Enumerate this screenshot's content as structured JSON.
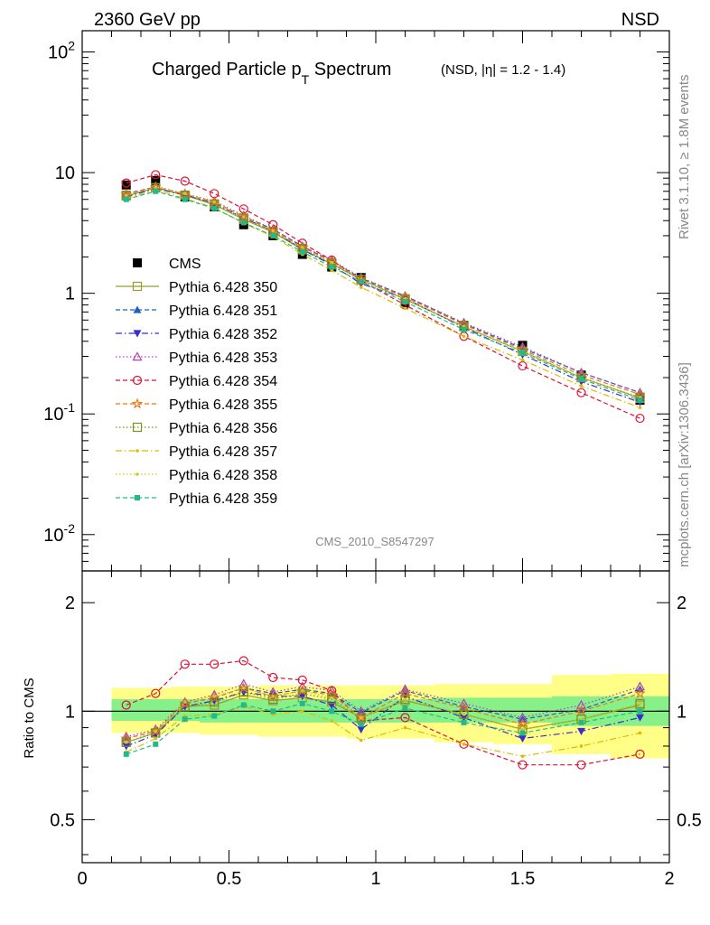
{
  "header": {
    "left": "2360 GeV pp",
    "right": "NSD"
  },
  "title": {
    "main": "Charged Particle p",
    "sub": "T",
    "main2": " Spectrum",
    "extra": "(NSD, |η| = 1.2 - 1.4)"
  },
  "side_labels": {
    "rivet": "Rivet 3.1.10, ≥ 1.8M events",
    "mcplots": "mcplots.cern.ch [arXiv:1306.3436]"
  },
  "analysis_id": "CMS_2010_S8547297",
  "ratio_axis_label": "Ratio to CMS",
  "colors": {
    "data": "#000000",
    "band_outer": "#ffff88",
    "band_inner": "#88f088"
  },
  "chart_data": [
    {
      "type": "scatter",
      "yscale": "log",
      "ylim": [
        0.005,
        150
      ],
      "xlim": [
        0,
        2
      ],
      "y_tick_labels": [
        "10⁻²",
        "10⁻¹",
        "1",
        "10",
        "10²"
      ],
      "x": [
        0.15,
        0.25,
        0.35,
        0.45,
        0.55,
        0.65,
        0.75,
        0.85,
        0.95,
        1.1,
        1.3,
        1.5,
        1.7,
        1.9
      ],
      "legend_position": "left-middle",
      "series": [
        {
          "name": "CMS",
          "color": "#000000",
          "style": "data",
          "marker": "square-filled",
          "values": [
            7.9,
            8.6,
            6.3,
            5.2,
            3.7,
            3.0,
            2.1,
            1.65,
            1.35,
            0.83,
            0.54,
            0.37,
            0.21,
            0.13
          ]
        },
        {
          "name": "Pythia 6.428 350",
          "color": "#9a9a32",
          "style": "solid",
          "marker": "square-open",
          "values": [
            6.4,
            7.5,
            6.5,
            5.4,
            4.1,
            3.2,
            2.3,
            1.75,
            1.3,
            0.89,
            0.53,
            0.33,
            0.2,
            0.135
          ]
        },
        {
          "name": "Pythia 6.428 351",
          "color": "#1f5fbf",
          "style": "dashed",
          "marker": "triangle-up-filled",
          "values": [
            6.7,
            7.6,
            6.6,
            5.7,
            4.3,
            3.4,
            2.45,
            1.85,
            1.33,
            0.95,
            0.56,
            0.35,
            0.22,
            0.15
          ]
        },
        {
          "name": "Pythia 6.428 352",
          "color": "#3a2ccc",
          "style": "dashdot",
          "marker": "triangle-down-filled",
          "values": [
            6.3,
            7.4,
            6.5,
            5.6,
            4.2,
            3.3,
            2.3,
            1.72,
            1.2,
            0.91,
            0.52,
            0.31,
            0.185,
            0.125
          ]
        },
        {
          "name": "Pythia 6.428 353",
          "color": "#b040b8",
          "style": "dotted",
          "marker": "triangle-up-open",
          "values": [
            6.6,
            7.7,
            6.7,
            5.8,
            4.4,
            3.4,
            2.45,
            1.88,
            1.35,
            0.95,
            0.57,
            0.36,
            0.22,
            0.15
          ]
        },
        {
          "name": "Pythia 6.428 354",
          "color": "#dd1133",
          "style": "dashed",
          "marker": "circle-open",
          "values": [
            8.2,
            9.6,
            8.5,
            6.7,
            5.0,
            3.7,
            2.6,
            1.88,
            1.27,
            0.8,
            0.44,
            0.25,
            0.15,
            0.092
          ]
        },
        {
          "name": "Pythia 6.428 355",
          "color": "#ee7711",
          "style": "dashed",
          "marker": "star-open",
          "values": [
            6.6,
            7.6,
            6.6,
            5.7,
            4.3,
            3.3,
            2.4,
            1.83,
            1.3,
            0.93,
            0.55,
            0.34,
            0.21,
            0.145
          ]
        },
        {
          "name": "Pythia 6.428 356",
          "color": "#7f8f1a",
          "style": "dotted",
          "marker": "square-open",
          "values": [
            6.5,
            7.5,
            6.5,
            5.5,
            4.2,
            3.25,
            2.35,
            1.78,
            1.3,
            0.9,
            0.53,
            0.33,
            0.2,
            0.137
          ]
        },
        {
          "name": "Pythia 6.428 357",
          "color": "#ddbb00",
          "style": "dashdot",
          "marker": "dot",
          "values": [
            6.1,
            7.2,
            6.1,
            5.1,
            3.8,
            2.95,
            2.1,
            1.55,
            1.12,
            0.75,
            0.44,
            0.28,
            0.17,
            0.113
          ]
        },
        {
          "name": "Pythia 6.428 358",
          "color": "#cccc22",
          "style": "dotted",
          "marker": "dot",
          "values": [
            6.5,
            7.6,
            6.7,
            5.7,
            4.3,
            3.3,
            2.4,
            1.8,
            1.3,
            0.9,
            0.53,
            0.33,
            0.2,
            0.137
          ]
        },
        {
          "name": "Pythia 6.428 359",
          "color": "#22bb88",
          "style": "dashed",
          "marker": "square-filled-small",
          "values": [
            6.0,
            7.0,
            6.0,
            5.05,
            3.85,
            3.0,
            2.2,
            1.65,
            1.25,
            0.85,
            0.5,
            0.32,
            0.195,
            0.13
          ]
        }
      ]
    },
    {
      "type": "line",
      "ylabel": "Ratio to CMS",
      "ylim": [
        0.38,
        2.45
      ],
      "xlim": [
        0,
        2
      ],
      "y_tick_labels": [
        "0.5",
        "1",
        "2"
      ],
      "x_tick_labels": [
        "0",
        "0.5",
        "1",
        "1.5",
        "2"
      ],
      "reference_line": 1,
      "band_edges": [
        0.1,
        0.2,
        0.3,
        0.4,
        0.5,
        0.6,
        0.7,
        0.8,
        0.9,
        1.0,
        1.2,
        1.4,
        1.6,
        1.8,
        2.0
      ],
      "band_outer_low": [
        0.87,
        0.87,
        0.87,
        0.86,
        0.86,
        0.85,
        0.85,
        0.85,
        0.84,
        0.84,
        0.82,
        0.81,
        0.76,
        0.74
      ],
      "band_outer_high": [
        1.16,
        1.16,
        1.17,
        1.17,
        1.17,
        1.18,
        1.18,
        1.18,
        1.18,
        1.18,
        1.19,
        1.19,
        1.26,
        1.27
      ],
      "band_inner_low": [
        0.94,
        0.94,
        0.94,
        0.93,
        0.93,
        0.93,
        0.93,
        0.93,
        0.93,
        0.93,
        0.93,
        0.93,
        0.91,
        0.91
      ],
      "band_inner_high": [
        1.08,
        1.08,
        1.08,
        1.08,
        1.08,
        1.08,
        1.08,
        1.08,
        1.08,
        1.08,
        1.09,
        1.09,
        1.1,
        1.1
      ],
      "series": [
        {
          "name": "Pythia 6.428 350",
          "values": [
            0.82,
            0.87,
            1.03,
            1.04,
            1.11,
            1.07,
            1.09,
            1.06,
            0.96,
            1.07,
            0.98,
            0.89,
            0.95,
            1.04
          ]
        },
        {
          "name": "Pythia 6.428 351",
          "values": [
            0.84,
            0.88,
            1.05,
            1.09,
            1.16,
            1.12,
            1.15,
            1.12,
            0.99,
            1.14,
            1.03,
            0.95,
            1.01,
            1.15
          ]
        },
        {
          "name": "Pythia 6.428 352",
          "values": [
            0.8,
            0.86,
            1.03,
            1.07,
            1.13,
            1.1,
            1.1,
            1.04,
            0.89,
            1.1,
            0.96,
            0.84,
            0.88,
            0.96
          ]
        },
        {
          "name": "Pythia 6.428 353",
          "values": [
            0.85,
            0.89,
            1.06,
            1.11,
            1.19,
            1.13,
            1.17,
            1.14,
            1.0,
            1.15,
            1.05,
            0.96,
            1.04,
            1.17
          ]
        },
        {
          "name": "Pythia 6.428 354",
          "values": [
            1.04,
            1.12,
            1.35,
            1.35,
            1.38,
            1.24,
            1.22,
            1.14,
            0.94,
            0.96,
            0.81,
            0.71,
            0.71,
            0.76
          ]
        },
        {
          "name": "Pythia 6.428 355",
          "values": [
            0.84,
            0.88,
            1.05,
            1.09,
            1.16,
            1.1,
            1.14,
            1.11,
            0.96,
            1.12,
            1.02,
            0.92,
            1.0,
            1.12
          ]
        },
        {
          "name": "Pythia 6.428 356",
          "values": [
            0.82,
            0.87,
            1.03,
            1.06,
            1.13,
            1.08,
            1.12,
            1.08,
            0.96,
            1.08,
            0.98,
            0.89,
            0.95,
            1.05
          ]
        },
        {
          "name": "Pythia 6.428 357",
          "values": [
            0.77,
            0.84,
            0.97,
            0.98,
            1.03,
            0.98,
            1.0,
            0.94,
            0.83,
            0.9,
            0.81,
            0.75,
            0.8,
            0.87
          ]
        },
        {
          "name": "Pythia 6.428 358",
          "values": [
            0.82,
            0.88,
            1.06,
            1.1,
            1.16,
            1.1,
            1.14,
            1.09,
            0.96,
            1.08,
            0.98,
            0.89,
            0.95,
            1.05
          ]
        },
        {
          "name": "Pythia 6.428 359",
          "values": [
            0.76,
            0.81,
            0.95,
            0.97,
            1.04,
            1.0,
            1.05,
            1.0,
            0.92,
            1.02,
            0.93,
            0.87,
            0.93,
            1.0
          ]
        }
      ]
    }
  ]
}
